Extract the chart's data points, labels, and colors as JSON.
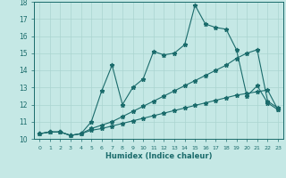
{
  "xlabel": "Humidex (Indice chaleur)",
  "xlim": [
    -0.5,
    23.5
  ],
  "ylim": [
    10,
    18
  ],
  "yticks": [
    10,
    11,
    12,
    13,
    14,
    15,
    16,
    17,
    18
  ],
  "xticks": [
    0,
    1,
    2,
    3,
    4,
    5,
    6,
    7,
    8,
    9,
    10,
    11,
    12,
    13,
    14,
    15,
    16,
    17,
    18,
    19,
    20,
    21,
    22,
    23
  ],
  "bg_color": "#c5e8e5",
  "line_color": "#1a6b6b",
  "grid_color": "#aad4d0",
  "line1_x": [
    0,
    1,
    2,
    3,
    4,
    5,
    6,
    7,
    8,
    9,
    10,
    11,
    12,
    13,
    14,
    15,
    16,
    17,
    18,
    19,
    20,
    21,
    22,
    23
  ],
  "line1_y": [
    10.3,
    10.4,
    10.4,
    10.2,
    10.3,
    11.0,
    12.8,
    14.3,
    12.0,
    13.0,
    13.5,
    15.1,
    14.9,
    15.0,
    15.5,
    17.8,
    16.7,
    16.5,
    16.4,
    15.2,
    12.5,
    13.1,
    12.1,
    11.7
  ],
  "line2_x": [
    0,
    1,
    2,
    3,
    4,
    5,
    6,
    7,
    8,
    9,
    10,
    11,
    12,
    13,
    14,
    15,
    16,
    17,
    18,
    19,
    20,
    21,
    22,
    23
  ],
  "line2_y": [
    10.3,
    10.4,
    10.4,
    10.2,
    10.3,
    10.6,
    10.8,
    11.0,
    11.3,
    11.6,
    11.9,
    12.2,
    12.5,
    12.8,
    13.1,
    13.4,
    13.7,
    14.0,
    14.3,
    14.7,
    15.0,
    15.2,
    12.2,
    11.8
  ],
  "line3_x": [
    0,
    1,
    2,
    3,
    4,
    5,
    6,
    7,
    8,
    9,
    10,
    11,
    12,
    13,
    14,
    15,
    16,
    17,
    18,
    19,
    20,
    21,
    22,
    23
  ],
  "line3_y": [
    10.3,
    10.4,
    10.4,
    10.2,
    10.3,
    10.5,
    10.6,
    10.75,
    10.9,
    11.05,
    11.2,
    11.35,
    11.5,
    11.65,
    11.8,
    11.95,
    12.1,
    12.25,
    12.4,
    12.55,
    12.65,
    12.75,
    12.85,
    11.7
  ]
}
